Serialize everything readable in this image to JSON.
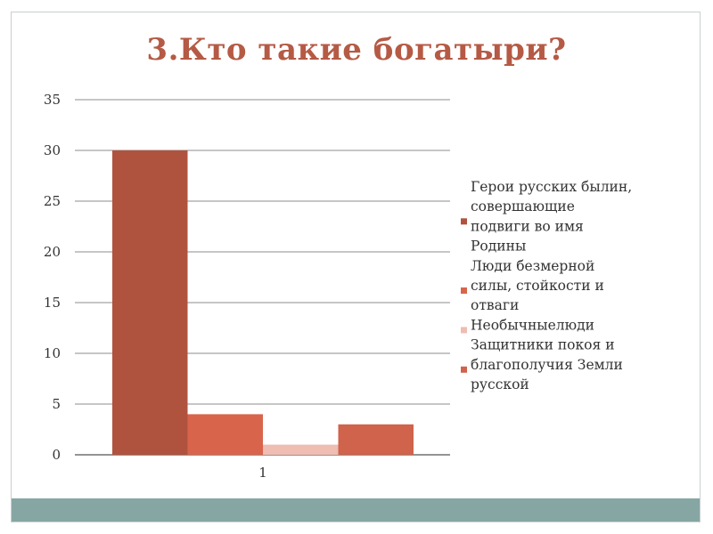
{
  "colors": {
    "title": "#b55a45",
    "band": "#86a6a3",
    "grid": "#8c8c8c",
    "axis": "#555555"
  },
  "chart_data": {
    "type": "bar",
    "title": "3.Кто такие богатыри?",
    "categories": [
      "1"
    ],
    "ylim": [
      0,
      35
    ],
    "yticks": [
      0,
      5,
      10,
      15,
      20,
      25,
      30,
      35
    ],
    "grid": true,
    "legend_position": "right",
    "series": [
      {
        "name": "Герои русских былин, совершающие подвиги во имя Родины",
        "name_lines": [
          "Герои русских былин,",
          "совершающие",
          "подвиги во имя",
          "Родины"
        ],
        "values": [
          30
        ],
        "color": "#b0533e"
      },
      {
        "name": "Люди безмерной силы, стойкости и отваги",
        "name_lines": [
          "Люди безмерной",
          "силы, стойкости и",
          "отваги"
        ],
        "values": [
          4
        ],
        "color": "#d8654b"
      },
      {
        "name": "Необычныелюди",
        "name_lines": [
          "Необычныелюди"
        ],
        "values": [
          1
        ],
        "color": "#efbdb2"
      },
      {
        "name": "Защитники покоя и благополучия Земли русской",
        "name_lines": [
          "Защитники покоя и",
          "благополучия Земли",
          "русской"
        ],
        "values": [
          3
        ],
        "color": "#cf634b"
      }
    ]
  }
}
